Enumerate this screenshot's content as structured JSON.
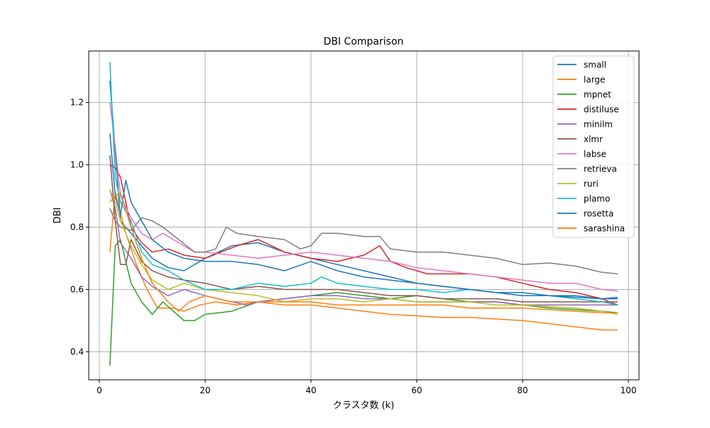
{
  "chart_data": {
    "type": "line",
    "title": "DBI Comparison",
    "xlabel": "クラスタ数 (k)",
    "ylabel": "DBI",
    "xlim": [
      -2,
      102
    ],
    "ylim": [
      0.31,
      1.365
    ],
    "xticks": [
      0,
      20,
      40,
      60,
      80,
      100
    ],
    "yticks": [
      0.4,
      0.6,
      0.8,
      1.0,
      1.2
    ],
    "grid": true,
    "legend_position": "upper right",
    "series": [
      {
        "name": "small",
        "color": "#1f77b4",
        "points": [
          [
            2,
            1.27
          ],
          [
            4,
            0.82
          ],
          [
            6,
            0.78
          ],
          [
            8,
            0.74
          ],
          [
            10,
            0.7
          ],
          [
            13,
            0.67
          ],
          [
            16,
            0.66
          ],
          [
            20,
            0.7
          ],
          [
            25,
            0.74
          ],
          [
            30,
            0.75
          ],
          [
            35,
            0.72
          ],
          [
            40,
            0.7
          ],
          [
            45,
            0.68
          ],
          [
            50,
            0.66
          ],
          [
            55,
            0.64
          ],
          [
            60,
            0.62
          ],
          [
            65,
            0.61
          ],
          [
            70,
            0.6
          ],
          [
            75,
            0.59
          ],
          [
            80,
            0.59
          ],
          [
            85,
            0.58
          ],
          [
            90,
            0.58
          ],
          [
            95,
            0.57
          ],
          [
            98,
            0.575
          ]
        ]
      },
      {
        "name": "large",
        "color": "#ff7f0e",
        "points": [
          [
            2,
            0.72
          ],
          [
            3,
            0.91
          ],
          [
            5,
            0.78
          ],
          [
            7,
            0.68
          ],
          [
            9,
            0.6
          ],
          [
            11,
            0.54
          ],
          [
            14,
            0.54
          ],
          [
            16,
            0.53
          ],
          [
            19,
            0.55
          ],
          [
            22,
            0.56
          ],
          [
            26,
            0.55
          ],
          [
            30,
            0.56
          ],
          [
            35,
            0.55
          ],
          [
            40,
            0.55
          ],
          [
            45,
            0.54
          ],
          [
            50,
            0.53
          ],
          [
            55,
            0.52
          ],
          [
            60,
            0.515
          ],
          [
            65,
            0.51
          ],
          [
            70,
            0.51
          ],
          [
            75,
            0.505
          ],
          [
            80,
            0.5
          ],
          [
            85,
            0.49
          ],
          [
            90,
            0.48
          ],
          [
            95,
            0.47
          ],
          [
            98,
            0.47
          ]
        ]
      },
      {
        "name": "mpnet",
        "color": "#2ca02c",
        "points": [
          [
            2,
            0.355
          ],
          [
            3,
            0.74
          ],
          [
            4,
            0.76
          ],
          [
            6,
            0.62
          ],
          [
            8,
            0.56
          ],
          [
            10,
            0.52
          ],
          [
            12,
            0.56
          ],
          [
            14,
            0.53
          ],
          [
            16,
            0.5
          ],
          [
            18,
            0.5
          ],
          [
            20,
            0.52
          ],
          [
            25,
            0.53
          ],
          [
            30,
            0.56
          ],
          [
            35,
            0.57
          ],
          [
            40,
            0.58
          ],
          [
            45,
            0.59
          ],
          [
            50,
            0.58
          ],
          [
            55,
            0.57
          ],
          [
            60,
            0.58
          ],
          [
            65,
            0.57
          ],
          [
            70,
            0.56
          ],
          [
            75,
            0.56
          ],
          [
            80,
            0.55
          ],
          [
            85,
            0.54
          ],
          [
            90,
            0.535
          ],
          [
            95,
            0.53
          ],
          [
            98,
            0.525
          ]
        ]
      },
      {
        "name": "distiluse",
        "color": "#d62728",
        "points": [
          [
            2,
            1.0
          ],
          [
            3,
            0.99
          ],
          [
            4,
            0.96
          ],
          [
            6,
            0.8
          ],
          [
            8,
            0.75
          ],
          [
            10,
            0.72
          ],
          [
            13,
            0.73
          ],
          [
            16,
            0.71
          ],
          [
            20,
            0.7
          ],
          [
            23,
            0.72
          ],
          [
            26,
            0.74
          ],
          [
            30,
            0.76
          ],
          [
            35,
            0.72
          ],
          [
            40,
            0.7
          ],
          [
            45,
            0.69
          ],
          [
            50,
            0.71
          ],
          [
            53,
            0.74
          ],
          [
            55,
            0.69
          ],
          [
            58,
            0.67
          ],
          [
            62,
            0.65
          ],
          [
            66,
            0.65
          ],
          [
            70,
            0.65
          ],
          [
            75,
            0.64
          ],
          [
            80,
            0.62
          ],
          [
            85,
            0.6
          ],
          [
            90,
            0.59
          ],
          [
            95,
            0.57
          ],
          [
            98,
            0.55
          ]
        ]
      },
      {
        "name": "minilm",
        "color": "#9467bd",
        "points": [
          [
            2,
            0.92
          ],
          [
            3,
            0.86
          ],
          [
            4,
            0.75
          ],
          [
            6,
            0.7
          ],
          [
            8,
            0.64
          ],
          [
            10,
            0.61
          ],
          [
            13,
            0.58
          ],
          [
            16,
            0.6
          ],
          [
            20,
            0.58
          ],
          [
            25,
            0.56
          ],
          [
            28,
            0.55
          ],
          [
            30,
            0.56
          ],
          [
            35,
            0.57
          ],
          [
            40,
            0.58
          ],
          [
            45,
            0.58
          ],
          [
            50,
            0.57
          ],
          [
            55,
            0.57
          ],
          [
            60,
            0.56
          ],
          [
            65,
            0.56
          ],
          [
            70,
            0.56
          ],
          [
            75,
            0.56
          ],
          [
            80,
            0.55
          ],
          [
            85,
            0.55
          ],
          [
            90,
            0.55
          ],
          [
            95,
            0.55
          ],
          [
            98,
            0.55
          ]
        ]
      },
      {
        "name": "xlmr",
        "color": "#8c564b",
        "points": [
          [
            2,
            1.03
          ],
          [
            3,
            0.82
          ],
          [
            4,
            0.68
          ],
          [
            5,
            0.68
          ],
          [
            6,
            0.76
          ],
          [
            8,
            0.69
          ],
          [
            10,
            0.66
          ],
          [
            13,
            0.64
          ],
          [
            16,
            0.63
          ],
          [
            20,
            0.62
          ],
          [
            25,
            0.6
          ],
          [
            30,
            0.61
          ],
          [
            35,
            0.6
          ],
          [
            40,
            0.6
          ],
          [
            45,
            0.6
          ],
          [
            50,
            0.59
          ],
          [
            55,
            0.58
          ],
          [
            60,
            0.58
          ],
          [
            65,
            0.57
          ],
          [
            70,
            0.57
          ],
          [
            75,
            0.57
          ],
          [
            80,
            0.56
          ],
          [
            85,
            0.56
          ],
          [
            90,
            0.56
          ],
          [
            95,
            0.56
          ],
          [
            98,
            0.56
          ]
        ]
      },
      {
        "name": "labse",
        "color": "#e377c2",
        "points": [
          [
            2,
            1.2
          ],
          [
            3,
            1.06
          ],
          [
            4,
            0.9
          ],
          [
            6,
            0.83
          ],
          [
            8,
            0.78
          ],
          [
            10,
            0.76
          ],
          [
            12,
            0.78
          ],
          [
            15,
            0.75
          ],
          [
            18,
            0.72
          ],
          [
            20,
            0.72
          ],
          [
            25,
            0.71
          ],
          [
            30,
            0.7
          ],
          [
            35,
            0.71
          ],
          [
            40,
            0.72
          ],
          [
            45,
            0.71
          ],
          [
            50,
            0.7
          ],
          [
            55,
            0.69
          ],
          [
            60,
            0.67
          ],
          [
            65,
            0.66
          ],
          [
            70,
            0.65
          ],
          [
            75,
            0.64
          ],
          [
            80,
            0.63
          ],
          [
            85,
            0.62
          ],
          [
            90,
            0.62
          ],
          [
            95,
            0.6
          ],
          [
            98,
            0.595
          ]
        ]
      },
      {
        "name": "retrieva",
        "color": "#7f7f7f",
        "points": [
          [
            2,
            0.86
          ],
          [
            3,
            0.82
          ],
          [
            4,
            0.8
          ],
          [
            6,
            0.79
          ],
          [
            8,
            0.83
          ],
          [
            10,
            0.82
          ],
          [
            12,
            0.8
          ],
          [
            15,
            0.76
          ],
          [
            18,
            0.72
          ],
          [
            20,
            0.72
          ],
          [
            22,
            0.73
          ],
          [
            24,
            0.8
          ],
          [
            26,
            0.78
          ],
          [
            30,
            0.77
          ],
          [
            35,
            0.76
          ],
          [
            38,
            0.73
          ],
          [
            40,
            0.74
          ],
          [
            42,
            0.78
          ],
          [
            45,
            0.78
          ],
          [
            50,
            0.77
          ],
          [
            53,
            0.77
          ],
          [
            55,
            0.73
          ],
          [
            60,
            0.72
          ],
          [
            65,
            0.72
          ],
          [
            70,
            0.71
          ],
          [
            75,
            0.7
          ],
          [
            80,
            0.68
          ],
          [
            85,
            0.685
          ],
          [
            90,
            0.675
          ],
          [
            95,
            0.655
          ],
          [
            98,
            0.65
          ]
        ]
      },
      {
        "name": "ruri",
        "color": "#bcbd22",
        "points": [
          [
            2,
            0.92
          ],
          [
            3,
            0.88
          ],
          [
            4,
            0.82
          ],
          [
            6,
            0.74
          ],
          [
            8,
            0.68
          ],
          [
            10,
            0.63
          ],
          [
            13,
            0.6
          ],
          [
            16,
            0.62
          ],
          [
            20,
            0.6
          ],
          [
            25,
            0.59
          ],
          [
            30,
            0.58
          ],
          [
            35,
            0.56
          ],
          [
            40,
            0.57
          ],
          [
            45,
            0.57
          ],
          [
            50,
            0.56
          ],
          [
            55,
            0.57
          ],
          [
            60,
            0.56
          ],
          [
            65,
            0.56
          ],
          [
            70,
            0.56
          ],
          [
            75,
            0.55
          ],
          [
            80,
            0.55
          ],
          [
            85,
            0.545
          ],
          [
            90,
            0.54
          ],
          [
            95,
            0.53
          ],
          [
            98,
            0.52
          ]
        ]
      },
      {
        "name": "plamo",
        "color": "#17becf",
        "points": [
          [
            2,
            1.33
          ],
          [
            3,
            0.96
          ],
          [
            4,
            0.88
          ],
          [
            6,
            0.82
          ],
          [
            8,
            0.72
          ],
          [
            10,
            0.68
          ],
          [
            13,
            0.66
          ],
          [
            16,
            0.63
          ],
          [
            20,
            0.6
          ],
          [
            25,
            0.6
          ],
          [
            30,
            0.62
          ],
          [
            35,
            0.61
          ],
          [
            40,
            0.62
          ],
          [
            42,
            0.64
          ],
          [
            45,
            0.62
          ],
          [
            50,
            0.61
          ],
          [
            55,
            0.6
          ],
          [
            60,
            0.6
          ],
          [
            65,
            0.59
          ],
          [
            70,
            0.6
          ],
          [
            75,
            0.59
          ],
          [
            80,
            0.58
          ],
          [
            85,
            0.58
          ],
          [
            90,
            0.57
          ],
          [
            95,
            0.56
          ],
          [
            98,
            0.55
          ]
        ]
      },
      {
        "name": "rosetta",
        "color": "#1f77b4",
        "points": [
          [
            2,
            1.1
          ],
          [
            3,
            0.9
          ],
          [
            4,
            0.84
          ],
          [
            5,
            0.95
          ],
          [
            6,
            0.88
          ],
          [
            8,
            0.82
          ],
          [
            10,
            0.76
          ],
          [
            13,
            0.72
          ],
          [
            16,
            0.7
          ],
          [
            20,
            0.69
          ],
          [
            25,
            0.69
          ],
          [
            30,
            0.68
          ],
          [
            35,
            0.66
          ],
          [
            40,
            0.69
          ],
          [
            45,
            0.66
          ],
          [
            50,
            0.64
          ],
          [
            55,
            0.63
          ],
          [
            60,
            0.62
          ],
          [
            65,
            0.61
          ],
          [
            70,
            0.6
          ],
          [
            75,
            0.59
          ],
          [
            80,
            0.58
          ],
          [
            85,
            0.58
          ],
          [
            90,
            0.575
          ],
          [
            95,
            0.57
          ],
          [
            98,
            0.57
          ]
        ]
      },
      {
        "name": "sarashina",
        "color": "#ff7f0e",
        "points": [
          [
            2,
            0.88
          ],
          [
            3,
            0.9
          ],
          [
            4,
            0.91
          ],
          [
            6,
            0.8
          ],
          [
            8,
            0.7
          ],
          [
            10,
            0.62
          ],
          [
            13,
            0.56
          ],
          [
            15,
            0.53
          ],
          [
            17,
            0.56
          ],
          [
            20,
            0.58
          ],
          [
            25,
            0.56
          ],
          [
            30,
            0.56
          ],
          [
            35,
            0.56
          ],
          [
            40,
            0.56
          ],
          [
            45,
            0.55
          ],
          [
            50,
            0.55
          ],
          [
            55,
            0.55
          ],
          [
            60,
            0.55
          ],
          [
            65,
            0.55
          ],
          [
            70,
            0.54
          ],
          [
            75,
            0.54
          ],
          [
            80,
            0.54
          ],
          [
            85,
            0.535
          ],
          [
            90,
            0.53
          ],
          [
            95,
            0.525
          ],
          [
            98,
            0.525
          ]
        ]
      }
    ]
  }
}
